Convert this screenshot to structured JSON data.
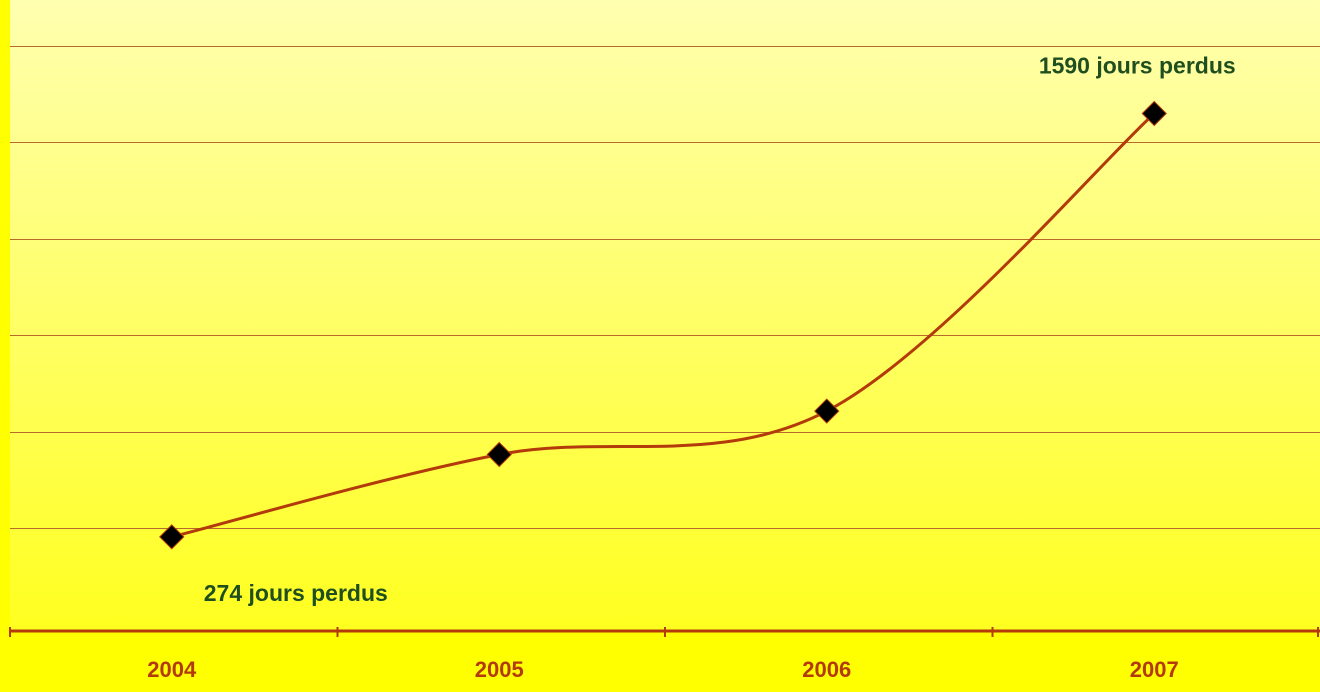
{
  "chart_data": {
    "type": "line",
    "categories": [
      "2004",
      "2005",
      "2006",
      "2007"
    ],
    "series": [
      {
        "values": [
          274,
          530,
          665,
          1590
        ]
      }
    ],
    "annotations": [
      {
        "text": "274 jours perdus",
        "category": "2004"
      },
      {
        "text": "1590 jours perdus",
        "category": "2007"
      }
    ],
    "ylim": [
      0,
      2100
    ],
    "grid": true,
    "legend": "none",
    "colors": {
      "line": "#b33a0a",
      "marker": "#000000",
      "annotation": "#1f4e1f",
      "tick_label": "#b33a0a",
      "gridline": "#b86a2a",
      "axis": "#b33a0a",
      "background_top": "#ffffb0",
      "background_bottom": "#ffff20"
    }
  }
}
